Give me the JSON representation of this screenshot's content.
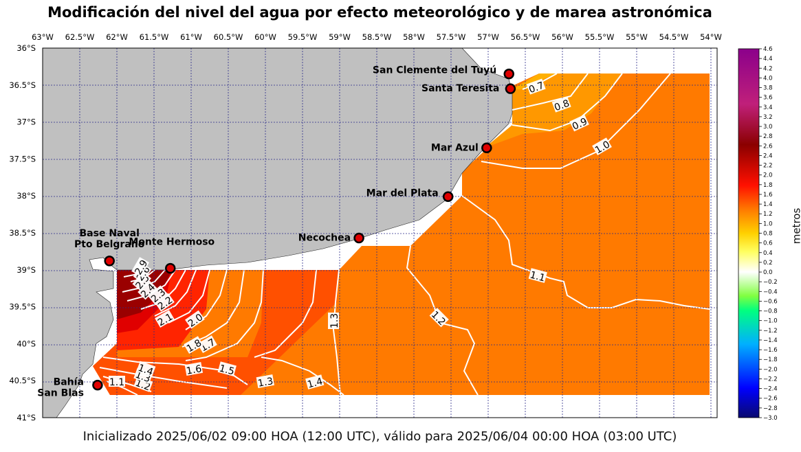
{
  "title": "Modificación del nivel del agua por efecto meteorológico y de marea astronómica",
  "footer": "Inicializado 2025/06/02 09:00 HOA (12:00 UTC), válido para 2025/06/04 00:00 HOA (03:00 UTC)",
  "colorbar": {
    "label": "metros",
    "min": -3.0,
    "max": 4.6,
    "ticks": [
      "4.6",
      "4.4",
      "4.2",
      "4.0",
      "3.8",
      "3.6",
      "3.4",
      "3.2",
      "3.0",
      "2.8",
      "2.6",
      "2.4",
      "2.2",
      "2.0",
      "1.8",
      "1.6",
      "1.4",
      "1.2",
      "1.0",
      "0.8",
      "0.6",
      "0.4",
      "0.2",
      "0.0",
      "−0.2",
      "−0.4",
      "−0.6",
      "−0.8",
      "−1.0",
      "−1.2",
      "−1.4",
      "−1.6",
      "−1.8",
      "−2.0",
      "−2.2",
      "−2.4",
      "−2.6",
      "−2.8",
      "−3.0"
    ]
  },
  "map": {
    "lon_ticks": [
      "63°W",
      "62.5°W",
      "62°W",
      "61.5°W",
      "61°W",
      "60.5°W",
      "60°W",
      "59.5°W",
      "59°W",
      "58.5°W",
      "58°W",
      "57.5°W",
      "57°W",
      "56.5°W",
      "56°W",
      "55.5°W",
      "55°W",
      "54.5°W",
      "54°W"
    ],
    "lat_ticks": [
      "36°S",
      "36.5°S",
      "37°S",
      "37.5°S",
      "38°S",
      "38.5°S",
      "39°S",
      "39.5°S",
      "40°S",
      "40.5°S",
      "41°S"
    ],
    "colors": {
      "land": "#c0c0c0",
      "sea_base": "#ff7a00",
      "gridline": "#2a2a8a",
      "station": "#e00000"
    },
    "stations": [
      {
        "name": "San Clemente del Tuyú",
        "lon": -56.72,
        "lat": -36.35
      },
      {
        "name": "Santa Teresita",
        "lon": -56.7,
        "lat": -36.55
      },
      {
        "name": "Mar Azul",
        "lon": -57.02,
        "lat": -37.35
      },
      {
        "name": "Mar del Plata",
        "lon": -57.54,
        "lat": -38.01
      },
      {
        "name": "Necochea",
        "lon": -58.74,
        "lat": -38.57
      },
      {
        "name": "Base Naval Pto Belgrano",
        "lon": -62.1,
        "lat": -38.88
      },
      {
        "name": "Monte Hermoso",
        "lon": -61.28,
        "lat": -38.98
      },
      {
        "name": "Bahía San Blas",
        "lon": -62.26,
        "lat": -40.56
      }
    ],
    "contour_labels": [
      "0.7",
      "0.8",
      "0.9",
      "1.0",
      "1.1",
      "1.2",
      "1.3",
      "1.4",
      "1.5",
      "1.6",
      "1.7",
      "1.8",
      "2.0",
      "2.1",
      "2.2",
      "2.3",
      "2.4",
      "2.5",
      "2.6",
      "2.9",
      "1.1",
      "1.2",
      "1.3",
      "1.4",
      "1.3"
    ]
  }
}
